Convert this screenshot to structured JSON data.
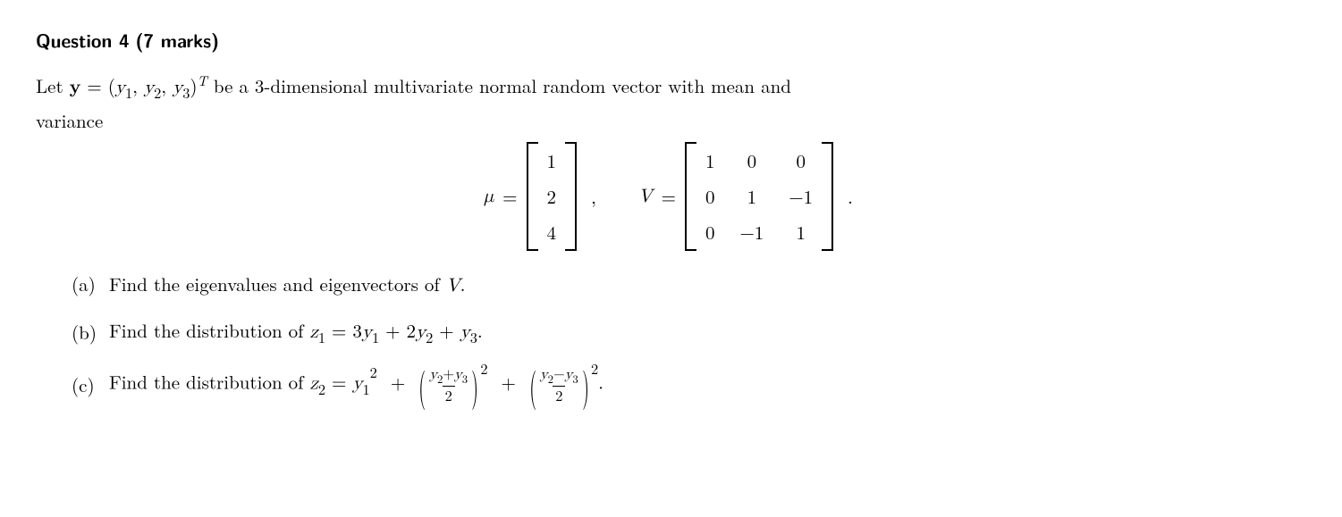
{
  "title": {
    "label": "Question 4",
    "marks": "(7 marks)"
  },
  "intro": {
    "part1": "Let ",
    "y_bold": "y",
    "eq1": " = (",
    "y1": "y",
    "y1s": "1",
    "c1": ", ",
    "y2": "y",
    "y2s": "2",
    "c2": ", ",
    "y3": "y",
    "y3s": "3",
    "close": ")",
    "T": "T",
    "part2": " be a 3-dimensional multivariate normal random vector with mean and",
    "line2": "variance"
  },
  "mu": {
    "sym": "μ",
    "eq": " = ",
    "v1": "1",
    "v2": "2",
    "v3": "4"
  },
  "comma": ",",
  "V": {
    "sym": "V",
    "eq": " = ",
    "r1c1": "1",
    "r1c2": "0",
    "r1c3": "0",
    "r2c1": "0",
    "r2c2": "1",
    "r2c3": "−1",
    "r3c1": "0",
    "r3c2": "−1",
    "r3c3": "1"
  },
  "period": ".",
  "parts": {
    "a": {
      "label": "(a)",
      "text_before": "Find the eigenvalues and eigenvectors of ",
      "V": "V",
      "dot": "."
    },
    "b": {
      "label": "(b)",
      "text_before": "Find the distribution of ",
      "z": "z",
      "zs": "1",
      "eq": " = 3",
      "y1": "y",
      "y1s": "1",
      "plus1": " + 2",
      "y2": "y",
      "y2s": "2",
      "plus2": " + ",
      "y3": "y",
      "y3s": "3",
      "dot": "."
    },
    "c": {
      "label": "(c)",
      "text_before": "Find the distribution of ",
      "z": "z",
      "zs": "2",
      "eq": " = ",
      "y1": "y",
      "y1s": "1",
      "sq": "2",
      "plus1": " + ",
      "f1num_y2": "y",
      "f1num_y2s": "2",
      "f1num_plus": "+",
      "f1num_y3": "y",
      "f1num_y3s": "3",
      "f1den": "2",
      "exp1": "2",
      "plus2": " + ",
      "f2num_y2": "y",
      "f2num_y2s": "2",
      "f2num_minus": "−",
      "f2num_y3": "y",
      "f2num_y3s": "3",
      "f2den": "2",
      "exp2": "2",
      "dot": "."
    }
  }
}
